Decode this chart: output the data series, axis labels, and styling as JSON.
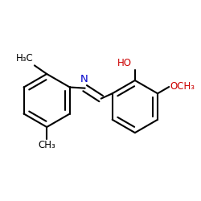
{
  "bg_color": "#ffffff",
  "bond_color": "#000000",
  "N_color": "#0000cc",
  "O_color": "#cc0000",
  "bond_width": 1.5,
  "font_size": 8.5,
  "fig_size": [
    2.5,
    2.5
  ],
  "dpi": 100,
  "xlim": [
    0.0,
    1.0
  ],
  "ylim": [
    0.05,
    0.95
  ]
}
